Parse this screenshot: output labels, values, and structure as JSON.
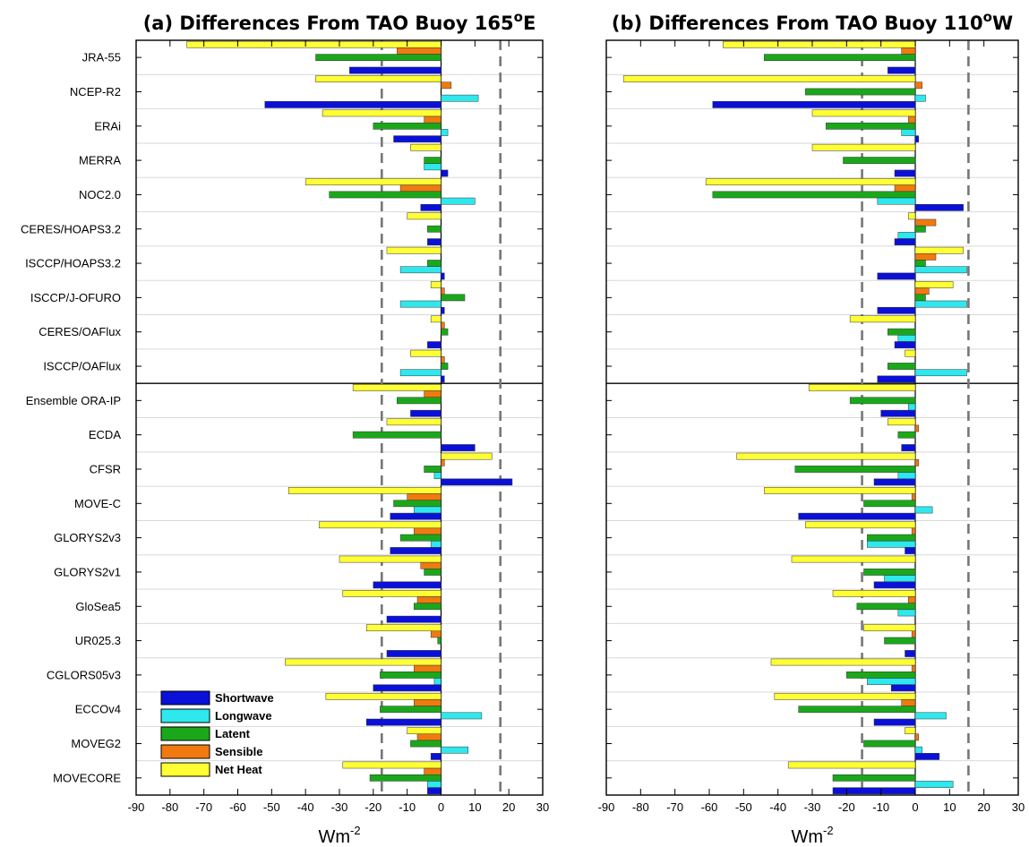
{
  "chart_data": {
    "type": "bar",
    "orientation": "horizontal",
    "categories": [
      "JRA-55",
      "NCEP-R2",
      "ERAi",
      "MERRA",
      "NOC2.0",
      "CERES/HOAPS3.2",
      "ISCCP/HOAPS3.2",
      "ISCCP/J-OFURO",
      "CERES/OAFlux",
      "ISCCP/OAFlux",
      "Ensemble ORA-IP",
      "ECDA",
      "CFSR",
      "MOVE-C",
      "GLORYS2v3",
      "GLORYS2v1",
      "GloSea5",
      "UR025.3",
      "CGLORS05v3",
      "ECCOv4",
      "MOVEG2",
      "MOVECORE"
    ],
    "series_order": [
      "Net Heat",
      "Sensible",
      "Latent",
      "Longwave",
      "Shortwave"
    ],
    "legend": {
      "placement": "bottom-left of panel (a)",
      "entries": [
        {
          "name": "Shortwave",
          "color": "#0a10d8"
        },
        {
          "name": "Longwave",
          "color": "#2ee8ee"
        },
        {
          "name": "Latent",
          "color": "#1aa81a"
        },
        {
          "name": "Sensible",
          "color": "#f07a10"
        },
        {
          "name": "Net Heat",
          "color": "#ffff33"
        }
      ]
    },
    "xlim": [
      -90,
      30
    ],
    "xticks": [
      "-90",
      "-80",
      "-70",
      "-60",
      "-50",
      "-40",
      "-30",
      "-20",
      "-10",
      "0",
      "10",
      "20",
      "30"
    ],
    "xlabel_main": "Wm",
    "xlabel_sup": "-2",
    "grid": "horizontal lines between categories",
    "panels": [
      {
        "title_main": "(a) Differences From TAO Buoy 165",
        "title_sup": "o",
        "title_tail": "E",
        "threshold_lines": [
          -17.5,
          17.5
        ],
        "series": [
          {
            "name": "Net Heat",
            "values": [
              -75,
              -37,
              -35,
              -9,
              -40,
              -10,
              -16,
              -3,
              -3,
              -9,
              -26,
              -16,
              15,
              -45,
              -36,
              -30,
              -29,
              -22,
              -46,
              -34,
              -10,
              -29
            ]
          },
          {
            "name": "Sensible",
            "values": [
              -13,
              3,
              -5,
              0,
              -12,
              0,
              0,
              1,
              1,
              1,
              -5,
              0,
              1,
              -10,
              -8,
              -6,
              -7,
              -3,
              -8,
              -8,
              -7,
              -5
            ]
          },
          {
            "name": "Latent",
            "values": [
              -37,
              0,
              -20,
              -5,
              -33,
              -4,
              -4,
              7,
              2,
              2,
              -13,
              -26,
              -5,
              -14,
              -12,
              -5,
              -8,
              -1,
              -18,
              -18,
              -9,
              -21
            ]
          },
          {
            "name": "Longwave",
            "values": [
              0,
              11,
              2,
              -5,
              10,
              0,
              -12,
              -12,
              0,
              -12,
              0,
              0,
              -2,
              -8,
              -3,
              0,
              0,
              0,
              -2,
              12,
              8,
              -4
            ]
          },
          {
            "name": "Shortwave",
            "values": [
              -27,
              -52,
              -14,
              2,
              -6,
              -4,
              1,
              1,
              -4,
              1,
              -9,
              10,
              21,
              -15,
              -15,
              -20,
              -16,
              -16,
              -20,
              -22,
              -3,
              -4
            ]
          }
        ]
      },
      {
        "title_main": "(b) Differences From TAO Buoy 110",
        "title_sup": "o",
        "title_tail": "W",
        "threshold_lines": [
          -15.5,
          15.5
        ],
        "series": [
          {
            "name": "Net Heat",
            "values": [
              -56,
              -85,
              -30,
              -30,
              -61,
              -2,
              14,
              11,
              -19,
              -3,
              -31,
              -8,
              -52,
              -44,
              -32,
              -36,
              -24,
              -15,
              -42,
              -41,
              -3,
              -37
            ]
          },
          {
            "name": "Sensible",
            "values": [
              -4,
              2,
              -2,
              0,
              -6,
              6,
              6,
              4,
              0,
              0,
              0,
              1,
              1,
              -1,
              -1,
              0,
              -2,
              -1,
              -1,
              -4,
              1,
              0
            ]
          },
          {
            "name": "Latent",
            "values": [
              -44,
              -32,
              -26,
              -21,
              -59,
              3,
              3,
              3,
              -8,
              -8,
              -19,
              -5,
              -35,
              -15,
              -14,
              -15,
              -17,
              -9,
              -20,
              -34,
              -15,
              -24
            ]
          },
          {
            "name": "Longwave",
            "values": [
              0,
              3,
              -4,
              0,
              -11,
              -5,
              15,
              15,
              -5,
              15,
              -2,
              0,
              -5,
              5,
              -14,
              -9,
              -5,
              0,
              -14,
              9,
              2,
              11
            ]
          },
          {
            "name": "Shortwave",
            "values": [
              -8,
              -59,
              1,
              -6,
              14,
              -6,
              -11,
              -11,
              -6,
              -11,
              -10,
              -4,
              -12,
              -34,
              -3,
              -12,
              0,
              -3,
              -7,
              -12,
              7,
              -24
            ]
          }
        ]
      }
    ]
  },
  "colors": {
    "Shortwave": "#0a10d8",
    "Longwave": "#2ee8ee",
    "Latent": "#1aa81a",
    "Sensible": "#f07a10",
    "Net Heat": "#ffff33"
  }
}
